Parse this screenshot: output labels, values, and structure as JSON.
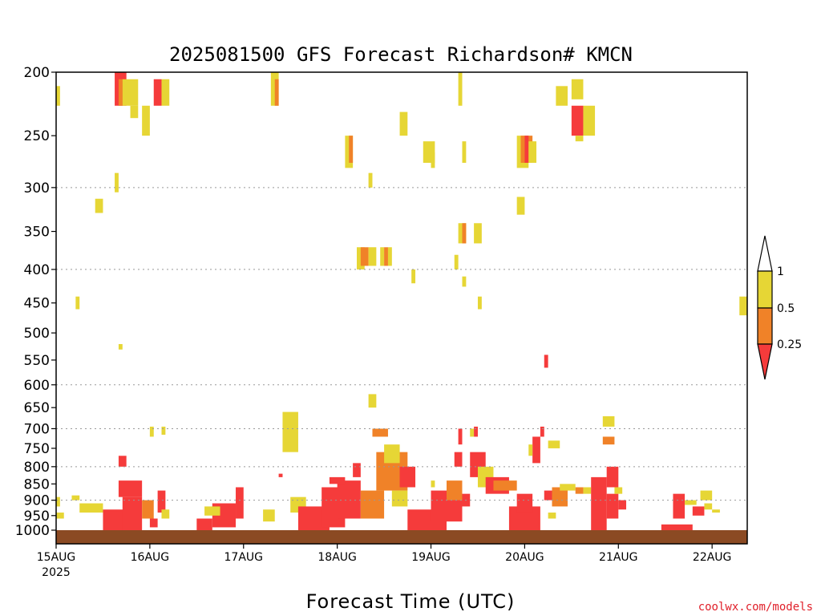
{
  "chart_data": {
    "type": "heatmap",
    "title": "2025081500 GFS Forecast Richardson# KMCN",
    "xlabel": "Forecast Time (UTC)",
    "ylabel": "",
    "credit": "coolwx.com/models",
    "x_range_hours": [
      0,
      177
    ],
    "y_range_hpa": [
      200,
      1035
    ],
    "y_scale": "log-pressure",
    "grid": "dotted horizontal at 300, 400, 600, 700, 800, 900 hPa",
    "x_ticks": [
      {
        "label": "15AUG",
        "sub": "2025",
        "hour": 0
      },
      {
        "label": "16AUG",
        "hour": 24
      },
      {
        "label": "17AUG",
        "hour": 48
      },
      {
        "label": "18AUG",
        "hour": 72
      },
      {
        "label": "19AUG",
        "hour": 96
      },
      {
        "label": "20AUG",
        "hour": 120
      },
      {
        "label": "21AUG",
        "hour": 144
      },
      {
        "label": "22AUG",
        "hour": 168
      }
    ],
    "y_ticks": [
      200,
      250,
      300,
      350,
      400,
      450,
      500,
      550,
      600,
      650,
      700,
      750,
      800,
      850,
      900,
      950,
      1000
    ],
    "y_grid": [
      300,
      400,
      600,
      700,
      800,
      900
    ],
    "colorbar": {
      "labels": [
        "1",
        "0.5",
        "0.25"
      ],
      "bins": [
        {
          "range": ">1",
          "color": "#ffffff"
        },
        {
          "range": "0.5-1",
          "color": "#e6d635"
        },
        {
          "range": "0.25-0.5",
          "color": "#f08228"
        },
        {
          "range": "<0.25",
          "color": "#f53b3b"
        }
      ]
    },
    "ground": {
      "from_hpa": 1000,
      "to_hpa": 1035,
      "color": "#8b4a23"
    },
    "cells": [
      {
        "t": 0,
        "t2": 1,
        "p1": 210,
        "p2": 225,
        "c": "y"
      },
      {
        "t": 0,
        "t2": 1,
        "p1": 890,
        "p2": 920,
        "c": "y"
      },
      {
        "t": 0,
        "t2": 2,
        "p1": 940,
        "p2": 960,
        "c": "y"
      },
      {
        "t": 4,
        "t2": 6,
        "p1": 885,
        "p2": 900,
        "c": "y"
      },
      {
        "t": 5,
        "t2": 6,
        "p1": 440,
        "p2": 460,
        "c": "y"
      },
      {
        "t": 6,
        "t2": 12,
        "p1": 910,
        "p2": 940,
        "c": "y"
      },
      {
        "t": 10,
        "t2": 12,
        "p1": 312,
        "p2": 328,
        "c": "y"
      },
      {
        "t": 12,
        "t2": 18,
        "p1": 930,
        "p2": 1000,
        "c": "r"
      },
      {
        "t": 15,
        "t2": 18,
        "p1": 200,
        "p2": 225,
        "c": "r"
      },
      {
        "t": 16,
        "t2": 17,
        "p1": 205,
        "p2": 225,
        "c": "o"
      },
      {
        "t": 17,
        "t2": 21,
        "p1": 205,
        "p2": 225,
        "c": "y"
      },
      {
        "t": 15,
        "t2": 16,
        "p1": 285,
        "p2": 305,
        "c": "y"
      },
      {
        "t": 16,
        "t2": 17,
        "p1": 520,
        "p2": 530,
        "c": "y"
      },
      {
        "t": 16,
        "t2": 18,
        "p1": 770,
        "p2": 800,
        "c": "r"
      },
      {
        "t": 16,
        "t2": 22,
        "p1": 840,
        "p2": 890,
        "c": "r"
      },
      {
        "t": 17,
        "t2": 22,
        "p1": 890,
        "p2": 1000,
        "c": "r"
      },
      {
        "t": 19,
        "t2": 21,
        "p1": 225,
        "p2": 235,
        "c": "y"
      },
      {
        "t": 22,
        "t2": 24,
        "p1": 225,
        "p2": 250,
        "c": "y"
      },
      {
        "t": 22,
        "t2": 25,
        "p1": 900,
        "p2": 960,
        "c": "o"
      },
      {
        "t": 24,
        "t2": 26,
        "p1": 960,
        "p2": 990,
        "c": "r"
      },
      {
        "t": 25,
        "t2": 27,
        "p1": 205,
        "p2": 225,
        "c": "r"
      },
      {
        "t": 27,
        "t2": 29,
        "p1": 205,
        "p2": 225,
        "c": "y"
      },
      {
        "t": 26,
        "t2": 28,
        "p1": 870,
        "p2": 940,
        "c": "r"
      },
      {
        "t": 27,
        "t2": 29,
        "p1": 930,
        "p2": 960,
        "c": "y"
      },
      {
        "t": 24,
        "t2": 25,
        "p1": 695,
        "p2": 720,
        "c": "y"
      },
      {
        "t": 27,
        "t2": 28,
        "p1": 695,
        "p2": 715,
        "c": "y"
      },
      {
        "t": 36,
        "t2": 40,
        "p1": 960,
        "p2": 1000,
        "c": "r"
      },
      {
        "t": 40,
        "t2": 46,
        "p1": 910,
        "p2": 990,
        "c": "r"
      },
      {
        "t": 46,
        "t2": 48,
        "p1": 860,
        "p2": 960,
        "c": "r"
      },
      {
        "t": 38,
        "t2": 42,
        "p1": 920,
        "p2": 950,
        "c": "y"
      },
      {
        "t": 55,
        "t2": 57,
        "p1": 200,
        "p2": 225,
        "c": "y"
      },
      {
        "t": 56,
        "t2": 57,
        "p1": 205,
        "p2": 225,
        "c": "o"
      },
      {
        "t": 53,
        "t2": 56,
        "p1": 930,
        "p2": 970,
        "c": "y"
      },
      {
        "t": 58,
        "t2": 62,
        "p1": 660,
        "p2": 700,
        "c": "y"
      },
      {
        "t": 58,
        "t2": 62,
        "p1": 700,
        "p2": 760,
        "c": "y"
      },
      {
        "t": 60,
        "t2": 64,
        "p1": 890,
        "p2": 940,
        "c": "y"
      },
      {
        "t": 57,
        "t2": 58,
        "p1": 820,
        "p2": 830,
        "c": "r"
      },
      {
        "t": 62,
        "t2": 70,
        "p1": 920,
        "p2": 1000,
        "c": "r"
      },
      {
        "t": 68,
        "t2": 74,
        "p1": 860,
        "p2": 990,
        "c": "r"
      },
      {
        "t": 72,
        "t2": 78,
        "p1": 840,
        "p2": 960,
        "c": "r"
      },
      {
        "t": 70,
        "t2": 74,
        "p1": 830,
        "p2": 850,
        "c": "r"
      },
      {
        "t": 74,
        "t2": 76,
        "p1": 250,
        "p2": 280,
        "c": "y"
      },
      {
        "t": 75,
        "t2": 76,
        "p1": 250,
        "p2": 275,
        "c": "o"
      },
      {
        "t": 76,
        "t2": 78,
        "p1": 790,
        "p2": 830,
        "c": "r"
      },
      {
        "t": 77,
        "t2": 79,
        "p1": 370,
        "p2": 400,
        "c": "y"
      },
      {
        "t": 78,
        "t2": 80,
        "p1": 370,
        "p2": 395,
        "c": "o"
      },
      {
        "t": 80,
        "t2": 82,
        "p1": 370,
        "p2": 395,
        "c": "y"
      },
      {
        "t": 83,
        "t2": 84,
        "p1": 370,
        "p2": 395,
        "c": "y"
      },
      {
        "t": 84,
        "t2": 85,
        "p1": 370,
        "p2": 395,
        "c": "o"
      },
      {
        "t": 85,
        "t2": 86,
        "p1": 370,
        "p2": 395,
        "c": "y"
      },
      {
        "t": 80,
        "t2": 81,
        "p1": 285,
        "p2": 300,
        "c": "y"
      },
      {
        "t": 81,
        "t2": 85,
        "p1": 700,
        "p2": 720,
        "c": "o"
      },
      {
        "t": 80,
        "t2": 82,
        "p1": 620,
        "p2": 650,
        "c": "y"
      },
      {
        "t": 78,
        "t2": 84,
        "p1": 870,
        "p2": 960,
        "c": "o"
      },
      {
        "t": 82,
        "t2": 90,
        "p1": 760,
        "p2": 870,
        "c": "o"
      },
      {
        "t": 84,
        "t2": 88,
        "p1": 740,
        "p2": 790,
        "c": "y"
      },
      {
        "t": 88,
        "t2": 92,
        "p1": 800,
        "p2": 860,
        "c": "r"
      },
      {
        "t": 86,
        "t2": 90,
        "p1": 870,
        "p2": 920,
        "c": "y"
      },
      {
        "t": 88,
        "t2": 90,
        "p1": 230,
        "p2": 250,
        "c": "y"
      },
      {
        "t": 91,
        "t2": 92,
        "p1": 400,
        "p2": 420,
        "c": "y"
      },
      {
        "t": 94,
        "t2": 97,
        "p1": 255,
        "p2": 275,
        "c": "y"
      },
      {
        "t": 96,
        "t2": 97,
        "p1": 265,
        "p2": 280,
        "c": "y"
      },
      {
        "t": 96,
        "t2": 97,
        "p1": 840,
        "p2": 860,
        "c": "y"
      },
      {
        "t": 90,
        "t2": 100,
        "p1": 930,
        "p2": 1000,
        "c": "r"
      },
      {
        "t": 96,
        "t2": 104,
        "p1": 870,
        "p2": 970,
        "c": "r"
      },
      {
        "t": 100,
        "t2": 104,
        "p1": 840,
        "p2": 900,
        "c": "o"
      },
      {
        "t": 102,
        "t2": 104,
        "p1": 760,
        "p2": 800,
        "c": "r"
      },
      {
        "t": 103,
        "t2": 104,
        "p1": 700,
        "p2": 740,
        "c": "r"
      },
      {
        "t": 104,
        "t2": 106,
        "p1": 880,
        "p2": 920,
        "c": "r"
      },
      {
        "t": 102,
        "t2": 103,
        "p1": 380,
        "p2": 400,
        "c": "y"
      },
      {
        "t": 103,
        "t2": 104,
        "p1": 200,
        "p2": 225,
        "c": "y"
      },
      {
        "t": 103,
        "t2": 105,
        "p1": 340,
        "p2": 365,
        "c": "y"
      },
      {
        "t": 104,
        "t2": 105,
        "p1": 340,
        "p2": 365,
        "c": "o"
      },
      {
        "t": 104,
        "t2": 105,
        "p1": 410,
        "p2": 425,
        "c": "y"
      },
      {
        "t": 104,
        "t2": 105,
        "p1": 255,
        "p2": 275,
        "c": "y"
      },
      {
        "t": 107,
        "t2": 109,
        "p1": 340,
        "p2": 365,
        "c": "y"
      },
      {
        "t": 106,
        "t2": 107,
        "p1": 700,
        "p2": 720,
        "c": "y"
      },
      {
        "t": 107,
        "t2": 108,
        "p1": 695,
        "p2": 720,
        "c": "r"
      },
      {
        "t": 106,
        "t2": 110,
        "p1": 760,
        "p2": 830,
        "c": "r"
      },
      {
        "t": 108,
        "t2": 112,
        "p1": 800,
        "p2": 860,
        "c": "y"
      },
      {
        "t": 110,
        "t2": 116,
        "p1": 830,
        "p2": 880,
        "c": "r"
      },
      {
        "t": 112,
        "t2": 118,
        "p1": 840,
        "p2": 870,
        "c": "o"
      },
      {
        "t": 108,
        "t2": 109,
        "p1": 440,
        "p2": 460,
        "c": "y"
      },
      {
        "t": 118,
        "t2": 121,
        "p1": 250,
        "p2": 280,
        "c": "y"
      },
      {
        "t": 119,
        "t2": 122,
        "p1": 250,
        "p2": 275,
        "c": "o"
      },
      {
        "t": 120,
        "t2": 121,
        "p1": 250,
        "p2": 275,
        "c": "r"
      },
      {
        "t": 121,
        "t2": 123,
        "p1": 255,
        "p2": 275,
        "c": "y"
      },
      {
        "t": 118,
        "t2": 120,
        "p1": 310,
        "p2": 330,
        "c": "y"
      },
      {
        "t": 122,
        "t2": 124,
        "p1": 720,
        "p2": 790,
        "c": "r"
      },
      {
        "t": 121,
        "t2": 122,
        "p1": 740,
        "p2": 770,
        "c": "y"
      },
      {
        "t": 116,
        "t2": 124,
        "p1": 920,
        "p2": 1000,
        "c": "r"
      },
      {
        "t": 118,
        "t2": 122,
        "p1": 880,
        "p2": 940,
        "c": "r"
      },
      {
        "t": 124,
        "t2": 125,
        "p1": 695,
        "p2": 720,
        "c": "r"
      },
      {
        "t": 125,
        "t2": 126,
        "p1": 540,
        "p2": 565,
        "c": "r"
      },
      {
        "t": 126,
        "t2": 129,
        "p1": 730,
        "p2": 750,
        "c": "y"
      },
      {
        "t": 125,
        "t2": 127,
        "p1": 870,
        "p2": 900,
        "c": "r"
      },
      {
        "t": 127,
        "t2": 131,
        "p1": 860,
        "p2": 920,
        "c": "o"
      },
      {
        "t": 129,
        "t2": 133,
        "p1": 850,
        "p2": 870,
        "c": "y"
      },
      {
        "t": 133,
        "t2": 135,
        "p1": 860,
        "p2": 880,
        "c": "o"
      },
      {
        "t": 135,
        "t2": 137,
        "p1": 860,
        "p2": 880,
        "c": "y"
      },
      {
        "t": 126,
        "t2": 128,
        "p1": 940,
        "p2": 960,
        "c": "y"
      },
      {
        "t": 128,
        "t2": 131,
        "p1": 210,
        "p2": 225,
        "c": "y"
      },
      {
        "t": 132,
        "t2": 135,
        "p1": 205,
        "p2": 220,
        "c": "y"
      },
      {
        "t": 132,
        "t2": 135,
        "p1": 225,
        "p2": 250,
        "c": "r"
      },
      {
        "t": 135,
        "t2": 138,
        "p1": 225,
        "p2": 250,
        "c": "y"
      },
      {
        "t": 133,
        "t2": 135,
        "p1": 250,
        "p2": 255,
        "c": "y"
      },
      {
        "t": 140,
        "t2": 143,
        "p1": 670,
        "p2": 695,
        "c": "y"
      },
      {
        "t": 140,
        "t2": 143,
        "p1": 720,
        "p2": 740,
        "c": "o"
      },
      {
        "t": 137,
        "t2": 141,
        "p1": 830,
        "p2": 1000,
        "c": "r"
      },
      {
        "t": 141,
        "t2": 144,
        "p1": 800,
        "p2": 860,
        "c": "r"
      },
      {
        "t": 141,
        "t2": 144,
        "p1": 880,
        "p2": 960,
        "c": "r"
      },
      {
        "t": 144,
        "t2": 146,
        "p1": 900,
        "p2": 930,
        "c": "r"
      },
      {
        "t": 143,
        "t2": 145,
        "p1": 860,
        "p2": 880,
        "c": "y"
      },
      {
        "t": 155,
        "t2": 163,
        "p1": 980,
        "p2": 1000,
        "c": "r"
      },
      {
        "t": 158,
        "t2": 161,
        "p1": 880,
        "p2": 960,
        "c": "r"
      },
      {
        "t": 161,
        "t2": 164,
        "p1": 900,
        "p2": 915,
        "c": "y"
      },
      {
        "t": 163,
        "t2": 166,
        "p1": 920,
        "p2": 950,
        "c": "r"
      },
      {
        "t": 165,
        "t2": 168,
        "p1": 870,
        "p2": 900,
        "c": "y"
      },
      {
        "t": 166,
        "t2": 168,
        "p1": 910,
        "p2": 930,
        "c": "y"
      },
      {
        "t": 168,
        "t2": 170,
        "p1": 930,
        "p2": 940,
        "c": "y"
      },
      {
        "t": 175,
        "t2": 177,
        "p1": 440,
        "p2": 470,
        "c": "y"
      }
    ]
  }
}
